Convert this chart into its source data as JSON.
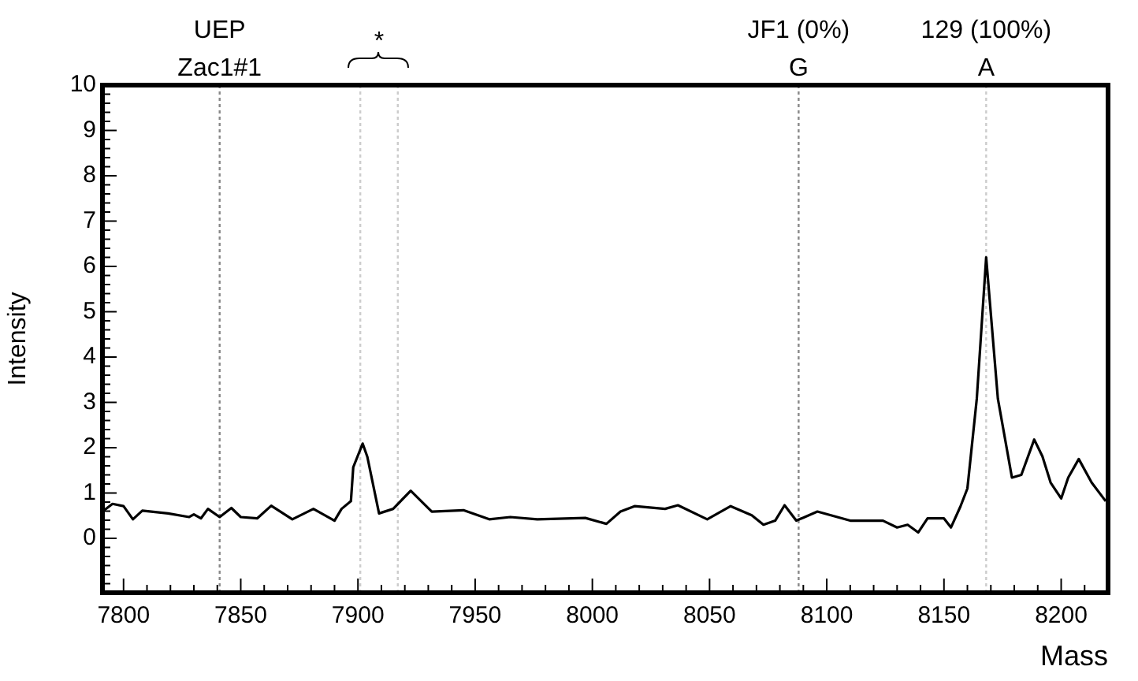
{
  "chart_data": {
    "type": "line",
    "xlabel": "Mass",
    "ylabel": "Intensity",
    "xlim": [
      7791,
      8220
    ],
    "xticks": [
      7800,
      7850,
      7900,
      7950,
      8000,
      8050,
      8100,
      8150,
      8200
    ],
    "ylim": [
      -1.2,
      10
    ],
    "yticks": [
      0,
      1,
      2,
      3,
      4,
      5,
      6,
      7,
      8,
      9,
      10
    ],
    "grid": false,
    "legend": false,
    "marker": "none",
    "line_style": "solid",
    "series": [
      {
        "color": "#000000",
        "x": [
          7791,
          7795.3,
          7800,
          7804,
          7808,
          7819,
          7828,
          7830,
          7833,
          7836,
          7841,
          7846,
          7850,
          7857,
          7863,
          7872,
          7881,
          7890,
          7893,
          7897,
          7898,
          7902,
          7904,
          7909,
          7915,
          7922.5,
          7931.5,
          7945,
          7956,
          7965,
          7976.5,
          7997,
          8006,
          8012,
          8018,
          8031,
          8036.5,
          8049,
          8059,
          8068,
          8073,
          8078,
          8082,
          8087,
          8096,
          8110,
          8124,
          8130,
          8134.5,
          8139,
          8143,
          8150,
          8153,
          8157,
          8160,
          8164,
          8168,
          8173,
          8179,
          8183,
          8188.5,
          8192,
          8195.5,
          8200,
          8203,
          8207.5,
          8213,
          8219
        ],
        "values": [
          0.59,
          0.76,
          0.71,
          0.42,
          0.61,
          0.55,
          0.47,
          0.53,
          0.44,
          0.65,
          0.47,
          0.67,
          0.47,
          0.44,
          0.72,
          0.42,
          0.65,
          0.39,
          0.65,
          0.82,
          1.57,
          2.09,
          1.8,
          0.55,
          0.65,
          1.05,
          0.59,
          0.62,
          0.42,
          0.47,
          0.42,
          0.45,
          0.32,
          0.59,
          0.71,
          0.65,
          0.73,
          0.42,
          0.71,
          0.51,
          0.3,
          0.39,
          0.73,
          0.39,
          0.59,
          0.39,
          0.39,
          0.24,
          0.3,
          0.13,
          0.44,
          0.44,
          0.24,
          0.7,
          1.1,
          3.08,
          6.2,
          3.08,
          1.34,
          1.4,
          2.18,
          1.81,
          1.23,
          0.88,
          1.34,
          1.75,
          1.23,
          0.82
        ]
      }
    ],
    "ref_lines": [
      {
        "axis": "x",
        "value": 7841,
        "label": "UEP\nZac1#1",
        "color": "#888888",
        "line_style": "dotted"
      },
      {
        "axis": "x",
        "value": 7901,
        "color": "#cccccc",
        "line_style": "dotted"
      },
      {
        "axis": "x",
        "value": 7917,
        "color": "#cccccc",
        "line_style": "dotted"
      },
      {
        "axis": "x",
        "value": 8088,
        "label": "JF1 (0%)\nG",
        "color": "#888888",
        "line_style": "dotted"
      },
      {
        "axis": "x",
        "value": 8168,
        "label": "129 (100%)\nA",
        "color": "#cccccc",
        "line_style": "dotted"
      }
    ],
    "annotations": [
      "*"
    ]
  }
}
